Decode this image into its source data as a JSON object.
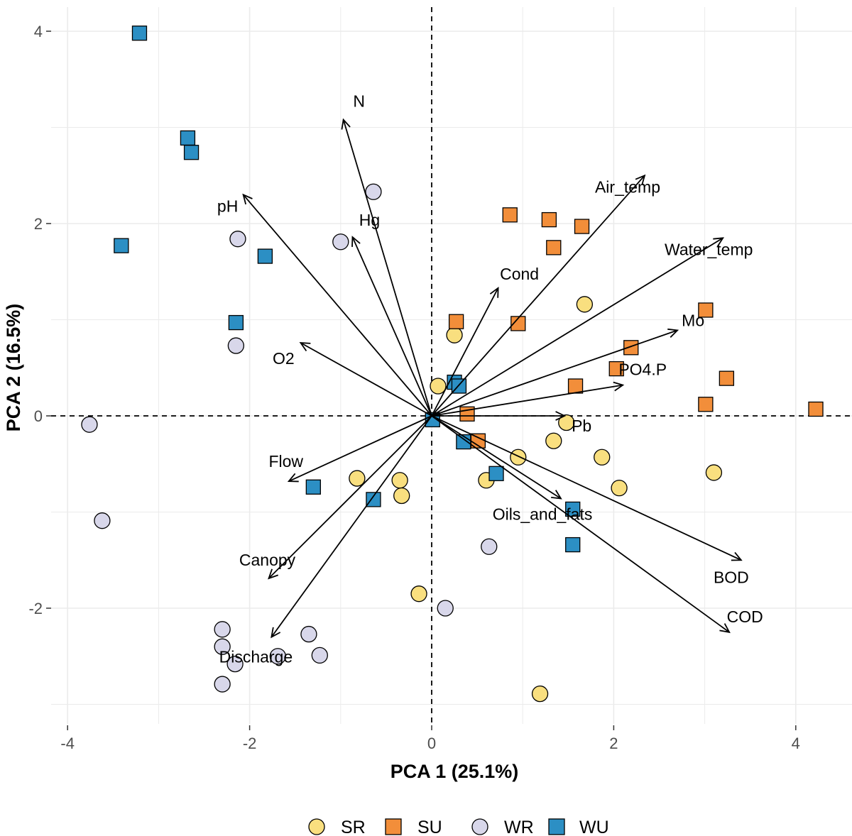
{
  "chart_data": {
    "type": "scatter",
    "subtype": "pca-biplot",
    "title": "",
    "xlabel": "PCA 1 (25.1%)",
    "ylabel": "PCA 2 (16.5%)",
    "xlim": [
      -4.0,
      4.6
    ],
    "ylim": [
      -3.1,
      4.1
    ],
    "xticks": [
      -4,
      -2,
      0,
      2,
      4
    ],
    "yticks": [
      -2,
      0,
      2,
      4
    ],
    "tick_labels_x": [
      "-4",
      "-2",
      "0",
      "2",
      "4"
    ],
    "tick_labels_y": [
      "-2",
      "0",
      "2",
      "4"
    ],
    "grid": true,
    "legend_position": "bottom",
    "colors": {
      "SR": "#f9df7f",
      "SU": "#f28e3a",
      "WR": "#d8d7ea",
      "WU": "#2c8fc4"
    },
    "legend": [
      {
        "label": "SR",
        "shape": "circle"
      },
      {
        "label": "SU",
        "shape": "square"
      },
      {
        "label": "WR",
        "shape": "circle"
      },
      {
        "label": "WU",
        "shape": "square"
      }
    ],
    "series": [
      {
        "name": "SR",
        "shape": "circle",
        "points": [
          [
            0.07,
            0.31
          ],
          [
            0.25,
            0.84
          ],
          [
            1.68,
            1.16
          ],
          [
            -0.82,
            -0.65
          ],
          [
            -0.35,
            -0.67
          ],
          [
            -0.33,
            -0.83
          ],
          [
            0.6,
            -0.67
          ],
          [
            0.95,
            -0.43
          ],
          [
            1.34,
            -0.26
          ],
          [
            1.48,
            -0.07
          ],
          [
            1.87,
            -0.43
          ],
          [
            2.06,
            -0.75
          ],
          [
            3.1,
            -0.59
          ],
          [
            -0.14,
            -1.85
          ],
          [
            1.19,
            -2.89
          ]
        ]
      },
      {
        "name": "SU",
        "shape": "square",
        "points": [
          [
            0.86,
            2.09
          ],
          [
            1.29,
            2.04
          ],
          [
            1.65,
            1.97
          ],
          [
            1.34,
            1.75
          ],
          [
            0.27,
            0.98
          ],
          [
            0.95,
            0.96
          ],
          [
            3.01,
            1.1
          ],
          [
            2.19,
            0.71
          ],
          [
            2.03,
            0.49
          ],
          [
            1.58,
            0.31
          ],
          [
            3.24,
            0.39
          ],
          [
            3.01,
            0.12
          ],
          [
            4.22,
            0.07
          ],
          [
            0.39,
            0.02
          ],
          [
            0.51,
            -0.26
          ]
        ]
      },
      {
        "name": "WR",
        "shape": "circle",
        "points": [
          [
            -0.64,
            2.33
          ],
          [
            -1.0,
            1.81
          ],
          [
            -2.13,
            1.84
          ],
          [
            -2.15,
            0.73
          ],
          [
            -3.76,
            -0.09
          ],
          [
            -3.62,
            -1.09
          ],
          [
            0.63,
            -1.36
          ],
          [
            0.15,
            -2.0
          ],
          [
            -2.3,
            -2.22
          ],
          [
            -2.3,
            -2.4
          ],
          [
            -2.16,
            -2.58
          ],
          [
            -1.69,
            -2.5
          ],
          [
            -1.35,
            -2.27
          ],
          [
            -1.23,
            -2.49
          ],
          [
            -2.3,
            -2.79
          ]
        ]
      },
      {
        "name": "WU",
        "shape": "square",
        "points": [
          [
            -3.21,
            3.98
          ],
          [
            -2.68,
            2.89
          ],
          [
            -2.64,
            2.74
          ],
          [
            -3.41,
            1.77
          ],
          [
            -1.83,
            1.66
          ],
          [
            -2.15,
            0.97
          ],
          [
            0.25,
            0.35
          ],
          [
            0.3,
            0.31
          ],
          [
            0.01,
            -0.04
          ],
          [
            0.35,
            -0.27
          ],
          [
            0.71,
            -0.6
          ],
          [
            -1.3,
            -0.74
          ],
          [
            -0.64,
            -0.87
          ],
          [
            1.55,
            -0.97
          ],
          [
            1.55,
            -1.34
          ]
        ]
      }
    ],
    "loadings": [
      {
        "name": "N",
        "x": -0.97,
        "y": 3.08
      },
      {
        "name": "pH",
        "x": -2.07,
        "y": 2.3
      },
      {
        "name": "Hg",
        "x": -0.87,
        "y": 1.86
      },
      {
        "name": "Cond",
        "x": 0.73,
        "y": 1.33
      },
      {
        "name": "Air_temp",
        "x": 2.34,
        "y": 2.5
      },
      {
        "name": "Water_temp",
        "x": 3.2,
        "y": 1.85
      },
      {
        "name": "Mo",
        "x": 2.7,
        "y": 0.89
      },
      {
        "name": "PO4.P",
        "x": 2.1,
        "y": 0.32
      },
      {
        "name": "Pb",
        "x": 1.46,
        "y": 0.0
      },
      {
        "name": "O2",
        "x": -1.44,
        "y": 0.76
      },
      {
        "name": "Oils_and_fats",
        "x": 1.42,
        "y": -0.86
      },
      {
        "name": "BOD",
        "x": 3.4,
        "y": -1.5
      },
      {
        "name": "COD",
        "x": 3.27,
        "y": -2.25
      },
      {
        "name": "Flow",
        "x": -1.57,
        "y": -0.68
      },
      {
        "name": "Canopy",
        "x": -1.79,
        "y": -1.69
      },
      {
        "name": "Discharge",
        "x": -1.76,
        "y": -2.3
      }
    ]
  }
}
